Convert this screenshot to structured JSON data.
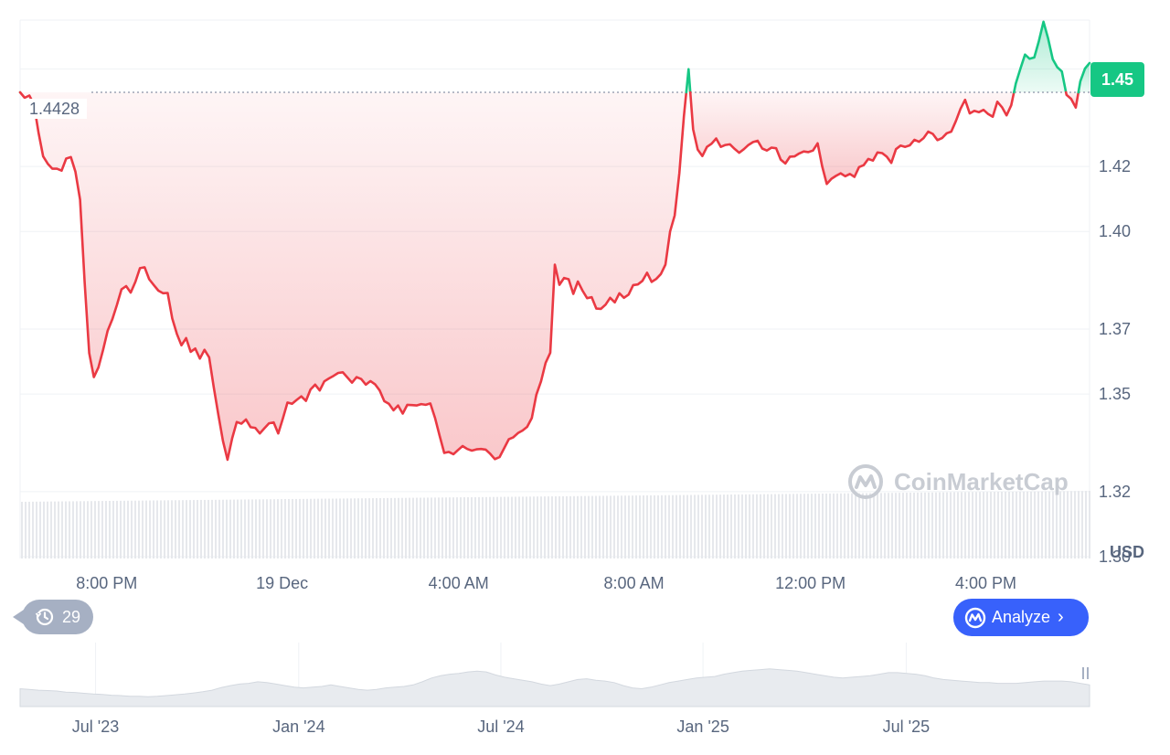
{
  "chart_data": {
    "type": "line",
    "currency": "USD",
    "reference_value": 1.4428,
    "reference_label": "1.4428",
    "last_value_label": "1.45",
    "ylim": [
      1.28,
      1.465
    ],
    "y_ticks": [
      "1.30",
      "1.32",
      "1.35",
      "1.37",
      "1.40",
      "1.42",
      "1.45"
    ],
    "y_tick_values": [
      1.3,
      1.32,
      1.35,
      1.37,
      1.4,
      1.42,
      1.45
    ],
    "x_ticks": [
      "8:00 PM",
      "19 Dec",
      "4:00 AM",
      "8:00 AM",
      "12:00 PM",
      "4:00 PM"
    ],
    "x_tick_positions": [
      0.081,
      0.245,
      0.41,
      0.574,
      0.739,
      0.903
    ],
    "series": [
      {
        "values": [
          1.4428,
          1.4411,
          1.4418,
          1.4391,
          1.4303,
          1.4231,
          1.4208,
          1.4193,
          1.4193,
          1.4187,
          1.4224,
          1.4229,
          1.4184,
          1.4098,
          1.3844,
          1.3626,
          1.3552,
          1.3582,
          1.3636,
          1.3695,
          1.373,
          1.3774,
          1.3822,
          1.3832,
          1.3812,
          1.3845,
          1.3887,
          1.389,
          1.3853,
          1.3835,
          1.3818,
          1.381,
          1.3811,
          1.3733,
          1.3685,
          1.365,
          1.3672,
          1.363,
          1.364,
          1.3609,
          1.3636,
          1.3613,
          1.3522,
          1.3436,
          1.3356,
          1.3298,
          1.3364,
          1.3414,
          1.3409,
          1.3422,
          1.3398,
          1.3396,
          1.3379,
          1.3395,
          1.341,
          1.3413,
          1.3379,
          1.3425,
          1.3474,
          1.347,
          1.3482,
          1.3493,
          1.3479,
          1.3514,
          1.3529,
          1.3511,
          1.3539,
          1.3548,
          1.3556,
          1.3565,
          1.3567,
          1.3551,
          1.3535,
          1.3552,
          1.3546,
          1.3529,
          1.354,
          1.353,
          1.3511,
          1.3478,
          1.347,
          1.345,
          1.3465,
          1.344,
          1.3467,
          1.3466,
          1.3465,
          1.3469,
          1.3467,
          1.3471,
          1.3427,
          1.3372,
          1.3319,
          1.3322,
          1.3315,
          1.3328,
          1.334,
          1.3331,
          1.3326,
          1.333,
          1.3331,
          1.3329,
          1.3316,
          1.33,
          1.3306,
          1.3333,
          1.3361,
          1.3367,
          1.338,
          1.3388,
          1.3399,
          1.3426,
          1.3498,
          1.3539,
          1.3596,
          1.3627,
          1.3898,
          1.3836,
          1.3857,
          1.3853,
          1.3808,
          1.3846,
          1.3818,
          1.3795,
          1.3798,
          1.3763,
          1.3762,
          1.3775,
          1.3796,
          1.3782,
          1.381,
          1.3796,
          1.3806,
          1.3835,
          1.3837,
          1.3848,
          1.3873,
          1.3845,
          1.3854,
          1.3869,
          1.3898,
          1.4,
          1.4049,
          1.4179,
          1.4354,
          1.4499,
          1.4314,
          1.4252,
          1.4232,
          1.426,
          1.427,
          1.4286,
          1.426,
          1.4266,
          1.4268,
          1.4254,
          1.4242,
          1.4253,
          1.4266,
          1.4275,
          1.4279,
          1.4255,
          1.4249,
          1.4258,
          1.4256,
          1.4221,
          1.4209,
          1.423,
          1.4231,
          1.424,
          1.4246,
          1.4244,
          1.4249,
          1.4271,
          1.42,
          1.4146,
          1.4162,
          1.4171,
          1.4179,
          1.417,
          1.4177,
          1.4168,
          1.4198,
          1.4204,
          1.4223,
          1.4218,
          1.4243,
          1.4241,
          1.423,
          1.4211,
          1.4253,
          1.4264,
          1.426,
          1.4265,
          1.4282,
          1.4276,
          1.4287,
          1.4307,
          1.43,
          1.4281,
          1.4287,
          1.4302,
          1.4307,
          1.434,
          1.4377,
          1.4405,
          1.4363,
          1.4371,
          1.4367,
          1.4374,
          1.4361,
          1.4353,
          1.4399,
          1.4382,
          1.4357,
          1.4388,
          1.4455,
          1.4501,
          1.4544,
          1.4531,
          1.4535,
          1.4585,
          1.4645,
          1.4594,
          1.453,
          1.4505,
          1.4492,
          1.442,
          1.4408,
          1.4381,
          1.4462,
          1.4501,
          1.4518
        ]
      }
    ],
    "navigator": {
      "labels": [
        "Jul '23",
        "Jan '24",
        "Jul '24",
        "Jan '25",
        "Jul '25"
      ],
      "label_positions": [
        0.062,
        0.252,
        0.441,
        0.63,
        0.82
      ],
      "values": [
        0.42,
        0.4,
        0.38,
        0.37,
        0.36,
        0.33,
        0.32,
        0.3,
        0.28,
        0.27,
        0.25,
        0.24,
        0.22,
        0.22,
        0.21,
        0.22,
        0.24,
        0.26,
        0.28,
        0.31,
        0.34,
        0.38,
        0.45,
        0.5,
        0.54,
        0.56,
        0.6,
        0.58,
        0.54,
        0.5,
        0.46,
        0.44,
        0.46,
        0.48,
        0.52,
        0.48,
        0.44,
        0.4,
        0.38,
        0.4,
        0.44,
        0.46,
        0.48,
        0.52,
        0.6,
        0.7,
        0.76,
        0.8,
        0.82,
        0.86,
        0.88,
        0.86,
        0.78,
        0.72,
        0.68,
        0.64,
        0.6,
        0.54,
        0.5,
        0.54,
        0.6,
        0.66,
        0.68,
        0.64,
        0.62,
        0.58,
        0.5,
        0.44,
        0.42,
        0.46,
        0.52,
        0.58,
        0.62,
        0.66,
        0.7,
        0.72,
        0.74,
        0.8,
        0.84,
        0.88,
        0.9,
        0.92,
        0.94,
        0.92,
        0.9,
        0.88,
        0.84,
        0.8,
        0.76,
        0.72,
        0.7,
        0.72,
        0.74,
        0.76,
        0.8,
        0.84,
        0.84,
        0.82,
        0.8,
        0.76,
        0.7,
        0.66,
        0.64,
        0.62,
        0.6,
        0.58,
        0.58,
        0.56,
        0.56,
        0.56,
        0.58,
        0.6,
        0.62,
        0.62,
        0.62,
        0.6,
        0.56,
        0.52
      ]
    },
    "colors": {
      "up": "#16c784",
      "down": "#ea3943",
      "grid": "#eff2f5",
      "volume": "#e6e8ec"
    },
    "grid": true
  },
  "ui": {
    "history_count": "29",
    "history_icon": "history-icon",
    "analyze_label": "Analyze",
    "analyze_icon": "coinmarketcap-logo-icon",
    "watermark_text": "CoinMarketCap",
    "currency_label": "USD"
  }
}
